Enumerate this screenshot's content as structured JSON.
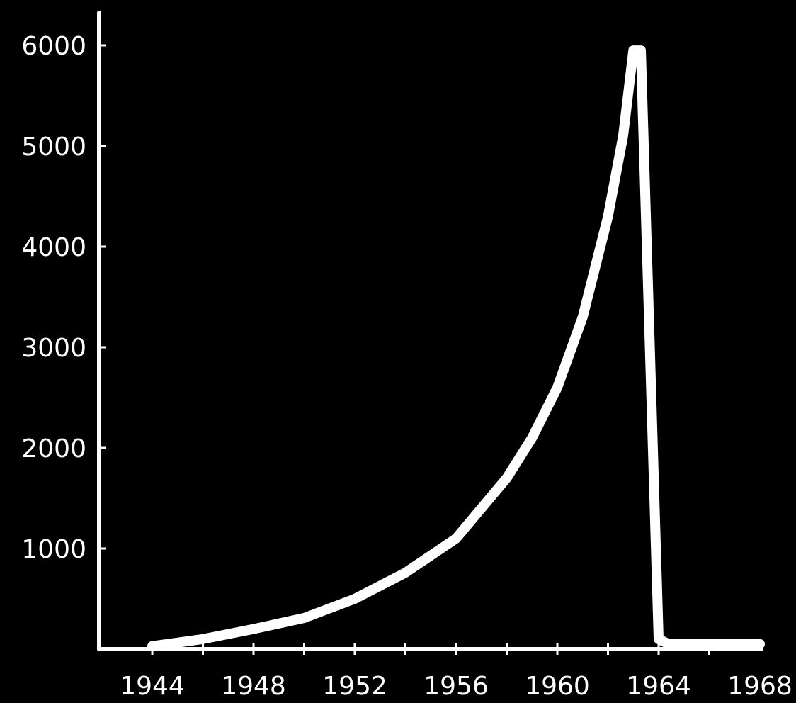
{
  "colors": {
    "background": "#000000",
    "foreground": "#ffffff"
  },
  "chart_data": {
    "type": "line",
    "title": "",
    "xlabel": "",
    "ylabel": "",
    "xlim": [
      1940.4,
      1968
    ],
    "ylim": [
      0,
      6000
    ],
    "x_ticks": [
      1944,
      1948,
      1952,
      1956,
      1960,
      1964,
      1968
    ],
    "x_tick_labels": [
      "1944",
      "1948",
      "1952",
      "1956",
      "1960",
      "1964",
      "1968"
    ],
    "y_ticks": [
      1000,
      2000,
      3000,
      4000,
      5000,
      6000
    ],
    "y_tick_labels": [
      "1000",
      "2000",
      "3000",
      "4000",
      "5000",
      "6000"
    ],
    "grid": false,
    "legend": "none",
    "series": [
      {
        "x": [
          1944,
          1946,
          1948,
          1950,
          1952,
          1954,
          1956,
          1958,
          1959,
          1960,
          1961,
          1962,
          1962.6,
          1963,
          1963.3,
          1964,
          1964.4,
          1966,
          1968
        ],
        "values": [
          30,
          100,
          200,
          310,
          500,
          760,
          1100,
          1700,
          2100,
          2600,
          3300,
          4300,
          5100,
          5950,
          5950,
          100,
          50,
          50,
          50
        ]
      }
    ]
  }
}
